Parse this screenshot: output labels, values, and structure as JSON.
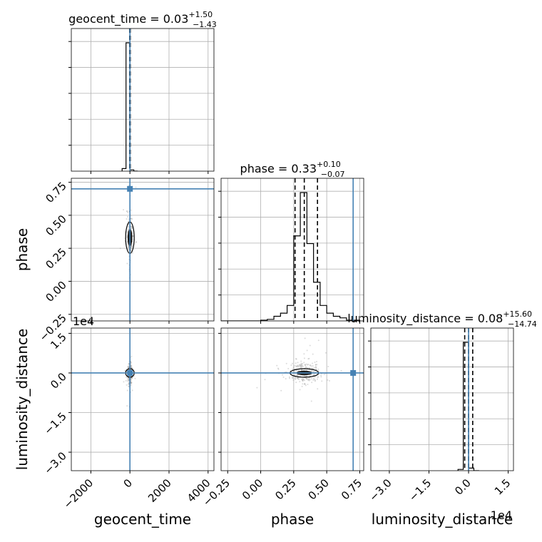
{
  "chart_data": {
    "type": "corner",
    "truth_color": "#4682b4",
    "hist_color": "#000000",
    "grid": true,
    "parameters": [
      {
        "name": "geocent_time",
        "axis_label": "geocent_time",
        "title_name": "geocent_time",
        "median": "0.03",
        "upper_err": "+1.50",
        "lower_err": "−1.43",
        "truth": 0,
        "quantiles": [
          -1.4,
          0.03,
          1.53
        ],
        "range": [
          -3000,
          4300
        ],
        "ticks": [
          -2000,
          0,
          2000,
          4000
        ],
        "tick_labels": [
          "−2000",
          "0",
          "2000",
          "4000"
        ],
        "offset_text": "",
        "hist_bins": [
          -400,
          -200,
          0,
          200,
          400
        ],
        "hist_counts": [
          0.02,
          1.0,
          0.01,
          0
        ]
      },
      {
        "name": "phase",
        "axis_label": "phase",
        "title_name": "phase",
        "median": "0.33",
        "upper_err": "+0.10",
        "lower_err": "−0.07",
        "truth": 0.7,
        "quantiles": [
          0.26,
          0.33,
          0.43
        ],
        "range": [
          -0.3,
          0.78
        ],
        "ticks": [
          -0.25,
          0.0,
          0.25,
          0.5,
          0.75
        ],
        "tick_labels": [
          "−0.25",
          "0.00",
          "0.25",
          "0.50",
          "0.75"
        ],
        "offset_text": "",
        "hist_bins": [
          -0.3,
          -0.25,
          -0.2,
          -0.15,
          -0.1,
          -0.05,
          0.0,
          0.05,
          0.1,
          0.15,
          0.2,
          0.25,
          0.3,
          0.35,
          0.4,
          0.45,
          0.5,
          0.55,
          0.6,
          0.65,
          0.7,
          0.75
        ],
        "hist_counts": [
          0,
          0,
          0,
          0,
          0,
          0,
          0.005,
          0.01,
          0.03,
          0.05,
          0.1,
          0.55,
          0.83,
          0.5,
          0.25,
          0.1,
          0.05,
          0.03,
          0.02,
          0.005,
          0.005
        ]
      },
      {
        "name": "luminosity_distance",
        "axis_label": "luminosity_distance",
        "title_name": "luminosity_distance",
        "median": "0.08",
        "upper_err": "+15.60",
        "lower_err": "−14.74",
        "truth": 0,
        "quantiles": [
          -14.66,
          0.08,
          15.68
        ],
        "range": [
          -37000,
          17000
        ],
        "ticks": [
          -30000,
          -15000,
          0,
          15000
        ],
        "tick_labels": [
          "−3.0",
          "−1.5",
          "0.0",
          "1.5"
        ],
        "offset_text": "1e4",
        "hist_bins": [
          -4000,
          -2000,
          0,
          2000,
          4000
        ],
        "hist_counts": [
          0.01,
          1.0,
          0.02,
          0
        ]
      }
    ],
    "diag_ylabels": [
      "",
      "",
      ""
    ],
    "scatter_note": "2D posterior samples shown as faint gray points with black density contours"
  }
}
